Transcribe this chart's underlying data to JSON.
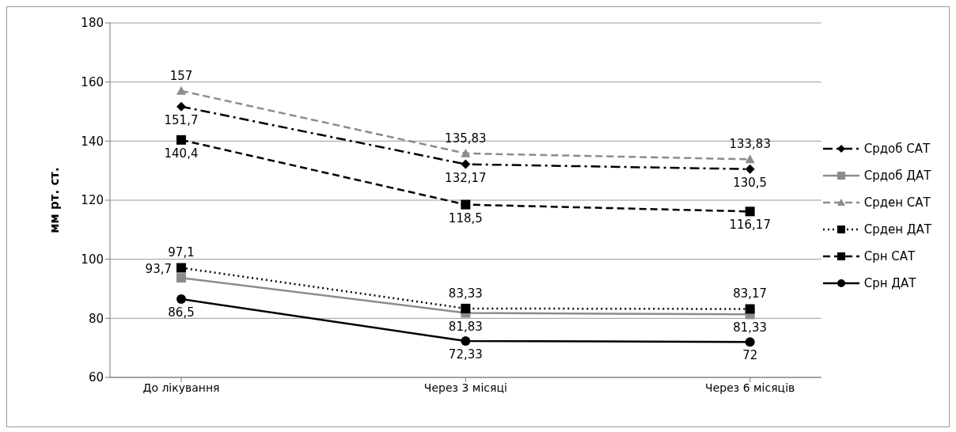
{
  "chart_data": {
    "type": "line",
    "ylabel": "мм рт. ст.",
    "categories": [
      "До лікування",
      "Через 3 місяці",
      "Через 6 місяців"
    ],
    "ylim": [
      60,
      180
    ],
    "yticks": [
      60,
      80,
      100,
      120,
      140,
      160,
      180
    ],
    "grid": "y",
    "legend": "right",
    "series": [
      {
        "name": "Срдоб САТ",
        "color": "#000000",
        "marker": "diamond",
        "line_style": "dashdot",
        "values": [
          151.7,
          132.17,
          130.5
        ],
        "value_labels": [
          "151,7",
          "132,17",
          "130,5"
        ]
      },
      {
        "name": "Срдоб ДАТ",
        "color": "#8c8c8c",
        "marker": "square",
        "line_style": "solid",
        "values": [
          93.7,
          81.83,
          81.33
        ],
        "value_labels": [
          "93,7",
          "81,83",
          "81,33"
        ]
      },
      {
        "name": "Срден САТ",
        "color": "#8c8c8c",
        "marker": "triangle",
        "line_style": "dashed",
        "values": [
          157,
          135.83,
          133.83
        ],
        "value_labels": [
          "157",
          "135,83",
          "133,83"
        ]
      },
      {
        "name": "Срден ДАТ",
        "color": "#000000",
        "marker": "square",
        "line_style": "dotted",
        "values": [
          97.1,
          83.33,
          83.17
        ],
        "value_labels": [
          "97,1",
          "83,33",
          "83,17"
        ]
      },
      {
        "name": "Срн САТ",
        "color": "#000000",
        "marker": "square",
        "line_style": "dashed",
        "values": [
          140.4,
          118.5,
          116.17
        ],
        "value_labels": [
          "140,4",
          "118,5",
          "116,17"
        ]
      },
      {
        "name": "Срн ДАТ",
        "color": "#000000",
        "marker": "circle",
        "line_style": "solid",
        "values": [
          86.5,
          72.33,
          72
        ],
        "value_labels": [
          "86,5",
          "72,33",
          "72"
        ]
      }
    ]
  }
}
